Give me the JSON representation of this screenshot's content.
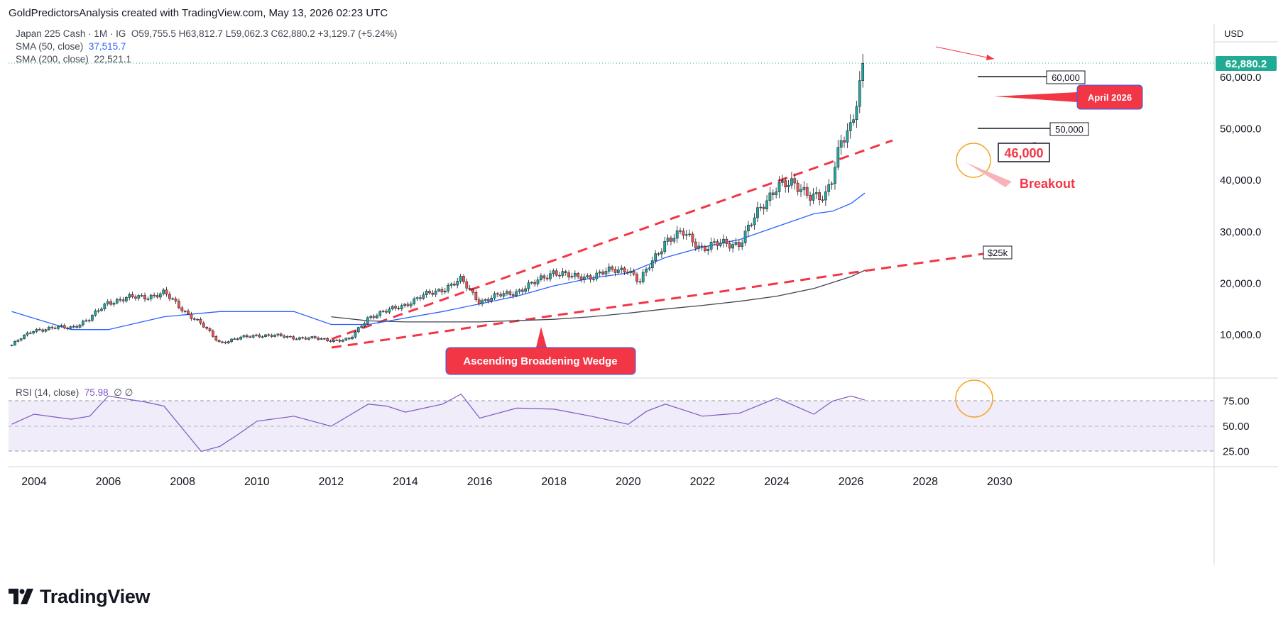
{
  "header": {
    "attribution": "GoldPredictorsAnalysis created with TradingView.com, May 13, 2026 02:23 UTC"
  },
  "legend": {
    "symbol": "Japan 225 Cash · 1M · IG",
    "ohlc": "O59,755.5  H63,812.7  L59,062.3  C62,880.2  +3,129.7 (+5.24%)",
    "sma50_label": "SMA (50, close)",
    "sma50_value": "37,515.7",
    "sma200_label": "SMA (200, close)",
    "sma200_value": "22,521.1"
  },
  "rsi_legend": {
    "label": "RSI (14, close)",
    "value": "75.98",
    "extra": "∅  ∅"
  },
  "currency": "USD",
  "last_price": "62,880.2",
  "annotations": {
    "level_60k": "60,000",
    "level_50k": "50,000",
    "april": "April 2026",
    "level_46k": "46,000",
    "breakout": "Breakout",
    "level_25k": "$25k",
    "pattern": "Ascending Broadening Wedge"
  },
  "logo_text": "TradingView",
  "colors": {
    "up": "#26a69a",
    "down": "#ef5350",
    "sma50": "#2962ff",
    "sma200": "#434651",
    "rsi": "#7e57c2",
    "annotation_red": "#f23645",
    "circle": "#f7a21b"
  },
  "chart_data": {
    "type": "line",
    "title": "Japan 225 Cash · 1M · IG",
    "x_ticks": [
      "2004",
      "2006",
      "2008",
      "2010",
      "2012",
      "2014",
      "2016",
      "2018",
      "2020",
      "2022",
      "2024",
      "2026",
      "2028",
      "2030"
    ],
    "y_ticks": [
      "60,000.0",
      "50,000.0",
      "40,000.0",
      "30,000.0",
      "20,000.0",
      "10,000.0"
    ],
    "rsi_ticks": [
      "75.00",
      "50.00",
      "25.00"
    ],
    "ylim": [
      0,
      65000
    ],
    "series": [
      {
        "name": "Japan 225 Cash",
        "x": [
          2003.4,
          2004,
          2005,
          2005.5,
          2006,
          2007,
          2007.5,
          2008,
          2008.5,
          2009,
          2010,
          2011,
          2012,
          2012.5,
          2013,
          2013.5,
          2014,
          2015,
          2015.5,
          2016,
          2017,
          2017.5,
          2018,
          2018.5,
          2019,
          2020,
          2020.3,
          2021,
          2021.5,
          2022,
          2023,
          2023.5,
          2024,
          2024.5,
          2024.8,
          2025,
          2025.3,
          2025.5,
          2025.75,
          2026,
          2026.25,
          2026.37
        ],
        "y": [
          8000,
          11000,
          11500,
          13000,
          16500,
          17500,
          18000,
          15000,
          12000,
          8500,
          10000,
          9500,
          9000,
          9000,
          13500,
          14500,
          16000,
          19000,
          20500,
          16500,
          18500,
          20000,
          22500,
          21000,
          21500,
          23000,
          20000,
          28500,
          29500,
          27000,
          28000,
          33500,
          39500,
          38500,
          38000,
          37500,
          36000,
          40000,
          49000,
          51000,
          58000,
          62880
        ]
      },
      {
        "name": "SMA (50, close)",
        "x": [
          2003.4,
          2005,
          2006,
          2007.5,
          2009,
          2011,
          2012,
          2013,
          2015,
          2017,
          2018,
          2019,
          2020,
          2021,
          2022,
          2023,
          2024,
          2025,
          2025.5,
          2026,
          2026.37
        ],
        "y": [
          14500,
          11000,
          11000,
          13500,
          14500,
          14500,
          12000,
          12000,
          14500,
          17500,
          19500,
          21000,
          22000,
          25000,
          27000,
          28500,
          31000,
          33500,
          34000,
          35500,
          37515.7
        ]
      },
      {
        "name": "SMA (200, close)",
        "x": [
          2012,
          2013,
          2014,
          2016,
          2018,
          2019,
          2020,
          2021,
          2022,
          2023,
          2024,
          2025,
          2026,
          2026.37
        ],
        "y": [
          13500,
          12700,
          12500,
          12500,
          13000,
          13500,
          14200,
          15000,
          15700,
          16500,
          17500,
          19000,
          21300,
          22521.1
        ]
      }
    ],
    "rsi": {
      "x": [
        2003.4,
        2004,
        2005,
        2005.5,
        2006,
        2007,
        2007.5,
        2008.5,
        2009,
        2009.5,
        2010,
        2011,
        2012,
        2013,
        2013.5,
        2014,
        2015,
        2015.5,
        2016,
        2017,
        2018,
        2019,
        2020,
        2020.5,
        2021,
        2022,
        2023,
        2024,
        2024.5,
        2025,
        2025.5,
        2026,
        2026.37
      ],
      "y": [
        52,
        62,
        57,
        60,
        80,
        74,
        70,
        25,
        30,
        42,
        55,
        60,
        50,
        72,
        70,
        64,
        72,
        82,
        58,
        68,
        67,
        60,
        52,
        65,
        72,
        60,
        63,
        78,
        70,
        62,
        75,
        80,
        75.98
      ]
    }
  }
}
